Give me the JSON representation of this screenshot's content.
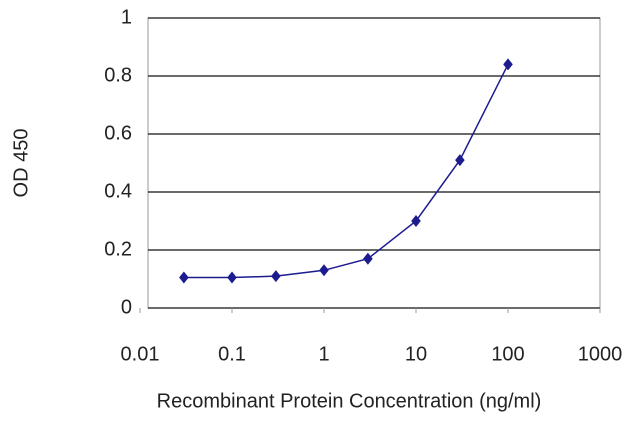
{
  "chart_data": {
    "type": "line",
    "xlabel": "Recombinant Protein Concentration (ng/ml)",
    "ylabel": "OD 450",
    "x": [
      0.03,
      0.1,
      0.3,
      1,
      3,
      10,
      30,
      100
    ],
    "series": [
      {
        "color": "#1c1c8f",
        "values": [
          0.105,
          0.105,
          0.11,
          0.13,
          0.17,
          0.3,
          0.51,
          0.84
        ]
      }
    ],
    "xscale": "log",
    "xlim": [
      0.01,
      1000
    ],
    "xticks": [
      0.01,
      0.1,
      1,
      10,
      100,
      1000
    ],
    "ylim": [
      0,
      1
    ],
    "yticks": [
      0,
      0.2,
      0.4,
      0.6,
      0.8,
      1
    ],
    "grid": true
  }
}
